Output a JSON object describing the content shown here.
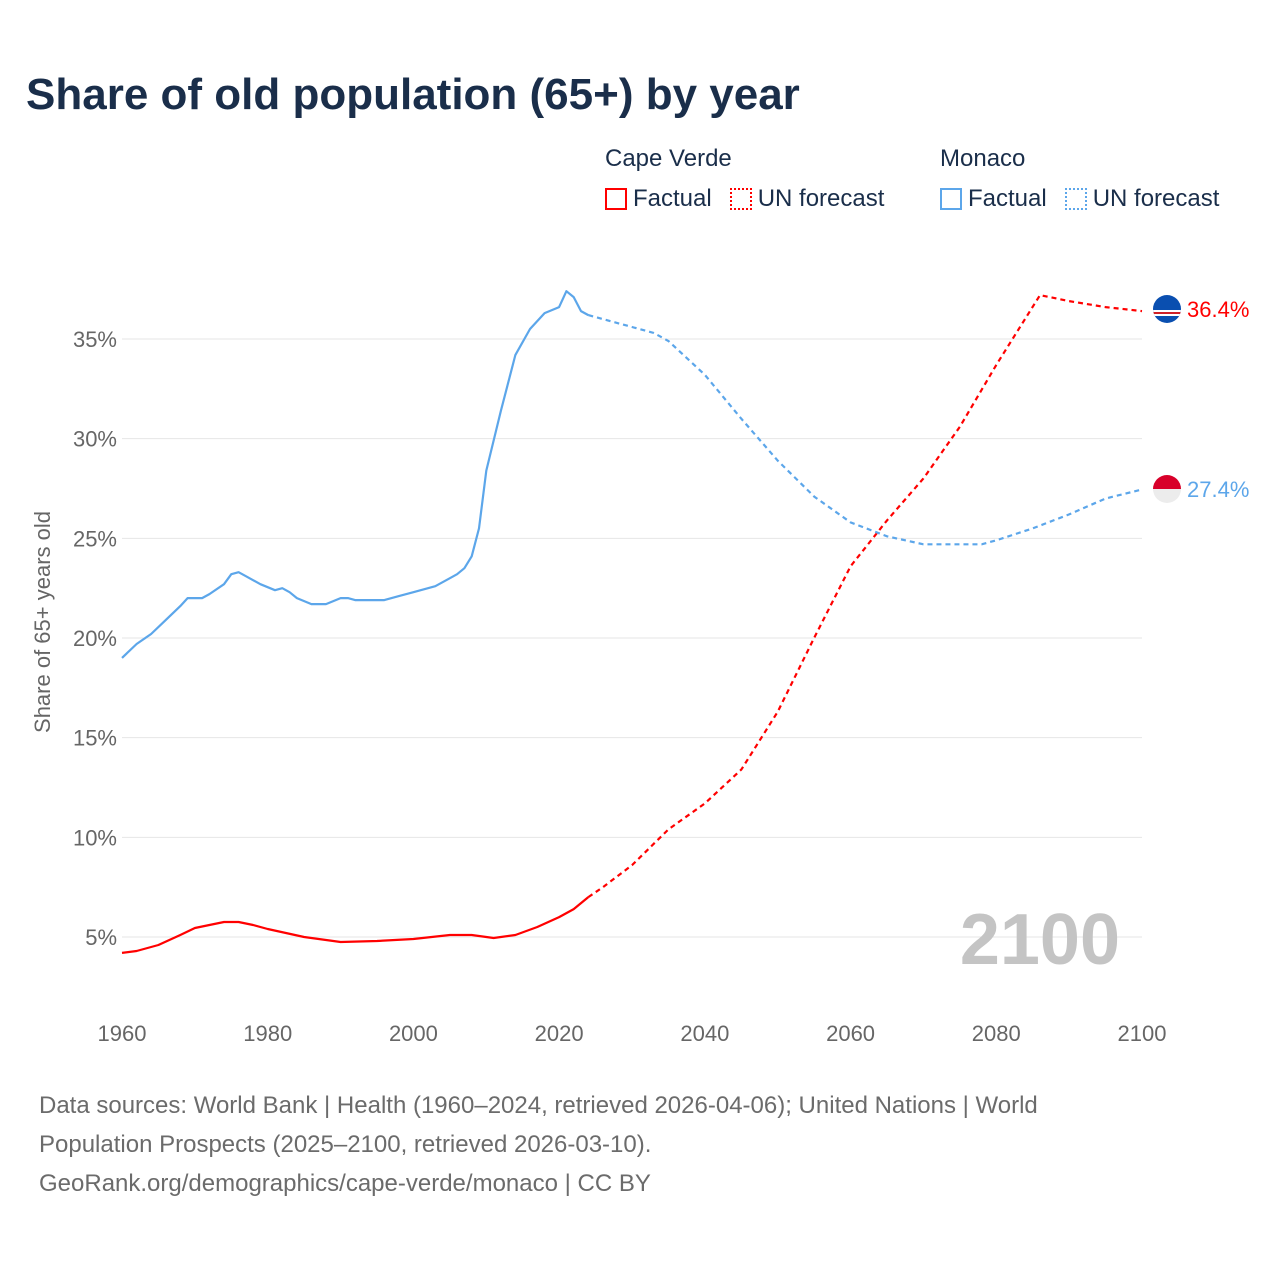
{
  "title": "Share of old population (65+) by year",
  "legend": {
    "groups": [
      {
        "name": "Cape Verde",
        "factual": "Factual",
        "forecast": "UN forecast",
        "color": "#ff0000"
      },
      {
        "name": "Monaco",
        "factual": "Factual",
        "forecast": "UN forecast",
        "color": "#5ca6ea"
      }
    ]
  },
  "chart_data": {
    "type": "line",
    "title": "Share of old population (65+) by year",
    "ylabel": "Share of 65+ years old",
    "xlabel": "",
    "xlim": [
      1960,
      2100
    ],
    "x_ticks": [
      "1960",
      "1980",
      "2000",
      "2020",
      "2040",
      "2060",
      "2080",
      "2100"
    ],
    "y_ticks": [
      "5%",
      "10%",
      "15%",
      "20%",
      "25%",
      "30%",
      "35%"
    ],
    "y_tick_values": [
      5,
      10,
      15,
      20,
      25,
      30,
      35
    ],
    "grid": true,
    "year_watermark": "2100",
    "series": [
      {
        "name": "Cape Verde",
        "color": "#ff0000",
        "end_label": "36.4%",
        "factual": [
          [
            1960,
            4.2
          ],
          [
            1962,
            4.3
          ],
          [
            1965,
            4.6
          ],
          [
            1968,
            5.1
          ],
          [
            1970,
            5.45
          ],
          [
            1972,
            5.6
          ],
          [
            1974,
            5.75
          ],
          [
            1976,
            5.75
          ],
          [
            1978,
            5.6
          ],
          [
            1980,
            5.4
          ],
          [
            1985,
            5.0
          ],
          [
            1990,
            4.75
          ],
          [
            1995,
            4.8
          ],
          [
            2000,
            4.9
          ],
          [
            2005,
            5.1
          ],
          [
            2008,
            5.1
          ],
          [
            2011,
            4.95
          ],
          [
            2014,
            5.1
          ],
          [
            2017,
            5.5
          ],
          [
            2020,
            6.0
          ],
          [
            2022,
            6.4
          ],
          [
            2024,
            7.0
          ]
        ],
        "forecast": [
          [
            2024,
            7.0
          ],
          [
            2026,
            7.5
          ],
          [
            2030,
            8.6
          ],
          [
            2035,
            10.4
          ],
          [
            2040,
            11.7
          ],
          [
            2045,
            13.4
          ],
          [
            2050,
            16.3
          ],
          [
            2055,
            20.0
          ],
          [
            2060,
            23.6
          ],
          [
            2065,
            25.9
          ],
          [
            2070,
            28.0
          ],
          [
            2075,
            30.6
          ],
          [
            2080,
            33.7
          ],
          [
            2086,
            37.2
          ],
          [
            2090,
            36.9
          ],
          [
            2095,
            36.6
          ],
          [
            2100,
            36.4
          ]
        ]
      },
      {
        "name": "Monaco",
        "color": "#5ca6ea",
        "end_label": "27.4%",
        "factual": [
          [
            1960,
            19.0
          ],
          [
            1962,
            19.7
          ],
          [
            1964,
            20.2
          ],
          [
            1966,
            20.9
          ],
          [
            1968,
            21.6
          ],
          [
            1969,
            22.0
          ],
          [
            1971,
            22.0
          ],
          [
            1972,
            22.2
          ],
          [
            1974,
            22.7
          ],
          [
            1975,
            23.2
          ],
          [
            1976,
            23.3
          ],
          [
            1977,
            23.1
          ],
          [
            1979,
            22.7
          ],
          [
            1981,
            22.4
          ],
          [
            1982,
            22.5
          ],
          [
            1983,
            22.3
          ],
          [
            1984,
            22.0
          ],
          [
            1986,
            21.7
          ],
          [
            1988,
            21.7
          ],
          [
            1989,
            21.85
          ],
          [
            1990,
            22.0
          ],
          [
            1991,
            22.0
          ],
          [
            1992,
            21.9
          ],
          [
            1996,
            21.9
          ],
          [
            1998,
            22.1
          ],
          [
            2000,
            22.3
          ],
          [
            2002,
            22.5
          ],
          [
            2003,
            22.6
          ],
          [
            2005,
            23.0
          ],
          [
            2006,
            23.2
          ],
          [
            2007,
            23.5
          ],
          [
            2008,
            24.1
          ],
          [
            2009,
            25.5
          ],
          [
            2010,
            28.4
          ],
          [
            2012,
            31.4
          ],
          [
            2014,
            34.2
          ],
          [
            2016,
            35.5
          ],
          [
            2018,
            36.3
          ],
          [
            2020,
            36.6
          ],
          [
            2021,
            37.4
          ],
          [
            2022,
            37.1
          ],
          [
            2023,
            36.4
          ],
          [
            2024,
            36.2
          ]
        ],
        "forecast": [
          [
            2024,
            36.2
          ],
          [
            2025,
            36.1
          ],
          [
            2030,
            35.6
          ],
          [
            2033,
            35.3
          ],
          [
            2035,
            34.9
          ],
          [
            2040,
            33.2
          ],
          [
            2045,
            31.0
          ],
          [
            2050,
            28.9
          ],
          [
            2055,
            27.1
          ],
          [
            2060,
            25.8
          ],
          [
            2065,
            25.1
          ],
          [
            2070,
            24.7
          ],
          [
            2078,
            24.7
          ],
          [
            2080,
            24.9
          ],
          [
            2085,
            25.5
          ],
          [
            2090,
            26.2
          ],
          [
            2095,
            27.0
          ],
          [
            2100,
            27.45
          ]
        ]
      }
    ]
  },
  "footer": {
    "line1": "Data sources: World Bank | Health (1960–2024, retrieved 2026-04-06); United Nations | World",
    "line2": "Population Prospects (2025–2100, retrieved 2026-03-10).",
    "line3": "GeoRank.org/demographics/cape-verde/monaco | CC BY"
  }
}
